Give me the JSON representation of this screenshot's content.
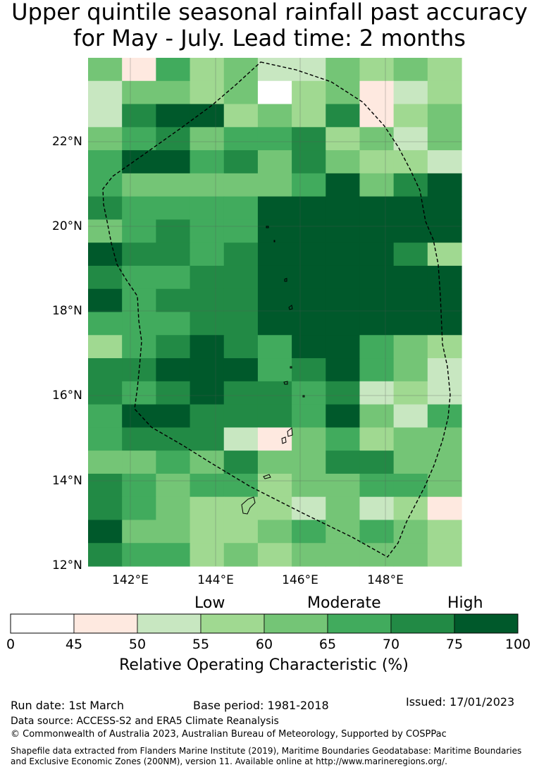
{
  "title": {
    "line1": "Upper quintile seasonal rainfall past accuracy",
    "line2": "for May - July. Lead time: 2 months"
  },
  "map": {
    "lat_labels": [
      "22°N",
      "20°N",
      "18°N",
      "16°N",
      "14°N",
      "12°N"
    ],
    "lon_labels": [
      "142°E",
      "144°E",
      "146°E",
      "148°E"
    ]
  },
  "colorbar": {
    "band_labels": {
      "low": "Low",
      "moderate": "Moderate",
      "high": "High"
    },
    "ticks": [
      "0",
      "45",
      "50",
      "55",
      "60",
      "65",
      "70",
      "75",
      "100"
    ],
    "colors": [
      "#ffffff",
      "#fee9e0",
      "#c8e7c1",
      "#a0d991",
      "#74c576",
      "#41ab5d",
      "#228a45",
      "#00592b"
    ],
    "title": "Relative Operating Characteristic (%)"
  },
  "footer": {
    "run_date": "Run date: 1st March",
    "base_period": "Base period: 1981-2018",
    "issued": "Issued: 17/01/2023",
    "data_source": "Data source: ACCESS-S2 and ERA5 Climate Reanalysis",
    "copyright": "© Commonwealth of Australia 2023, Australian Bureau of Meteorology, Supported by COSPPac",
    "shapefile_line1": "Shapefile data extracted from Flanders Marine Institute (2019), Maritime Boundaries Geodatabase: Maritime Boundaries",
    "shapefile_line2": "and Exclusive Economic Zones (200NM), version 11. Available online at http://www.marineregions.org/."
  },
  "grid": {
    "legend": "0=white(<45) 1=45-50 2=50-55 3=55-60 4=60-65 5=65-70 6=70-75 7=75-100",
    "rows": [
      "41534224343",
      "24434034123",
      "26773436134",
      "45645563424",
      "57756464332",
      "54444457467",
      "65555777777",
      "45655777777",
      "76656777763",
      "65566777777",
      "75666777777",
      "55566777777",
      "35676577543",
      "66777567542",
      "65676656232",
      "57766657425",
      "56662145344",
      "44546446644",
      "65455344554",
      "65433324231",
      "74433454543",
      "65534344443"
    ]
  }
}
